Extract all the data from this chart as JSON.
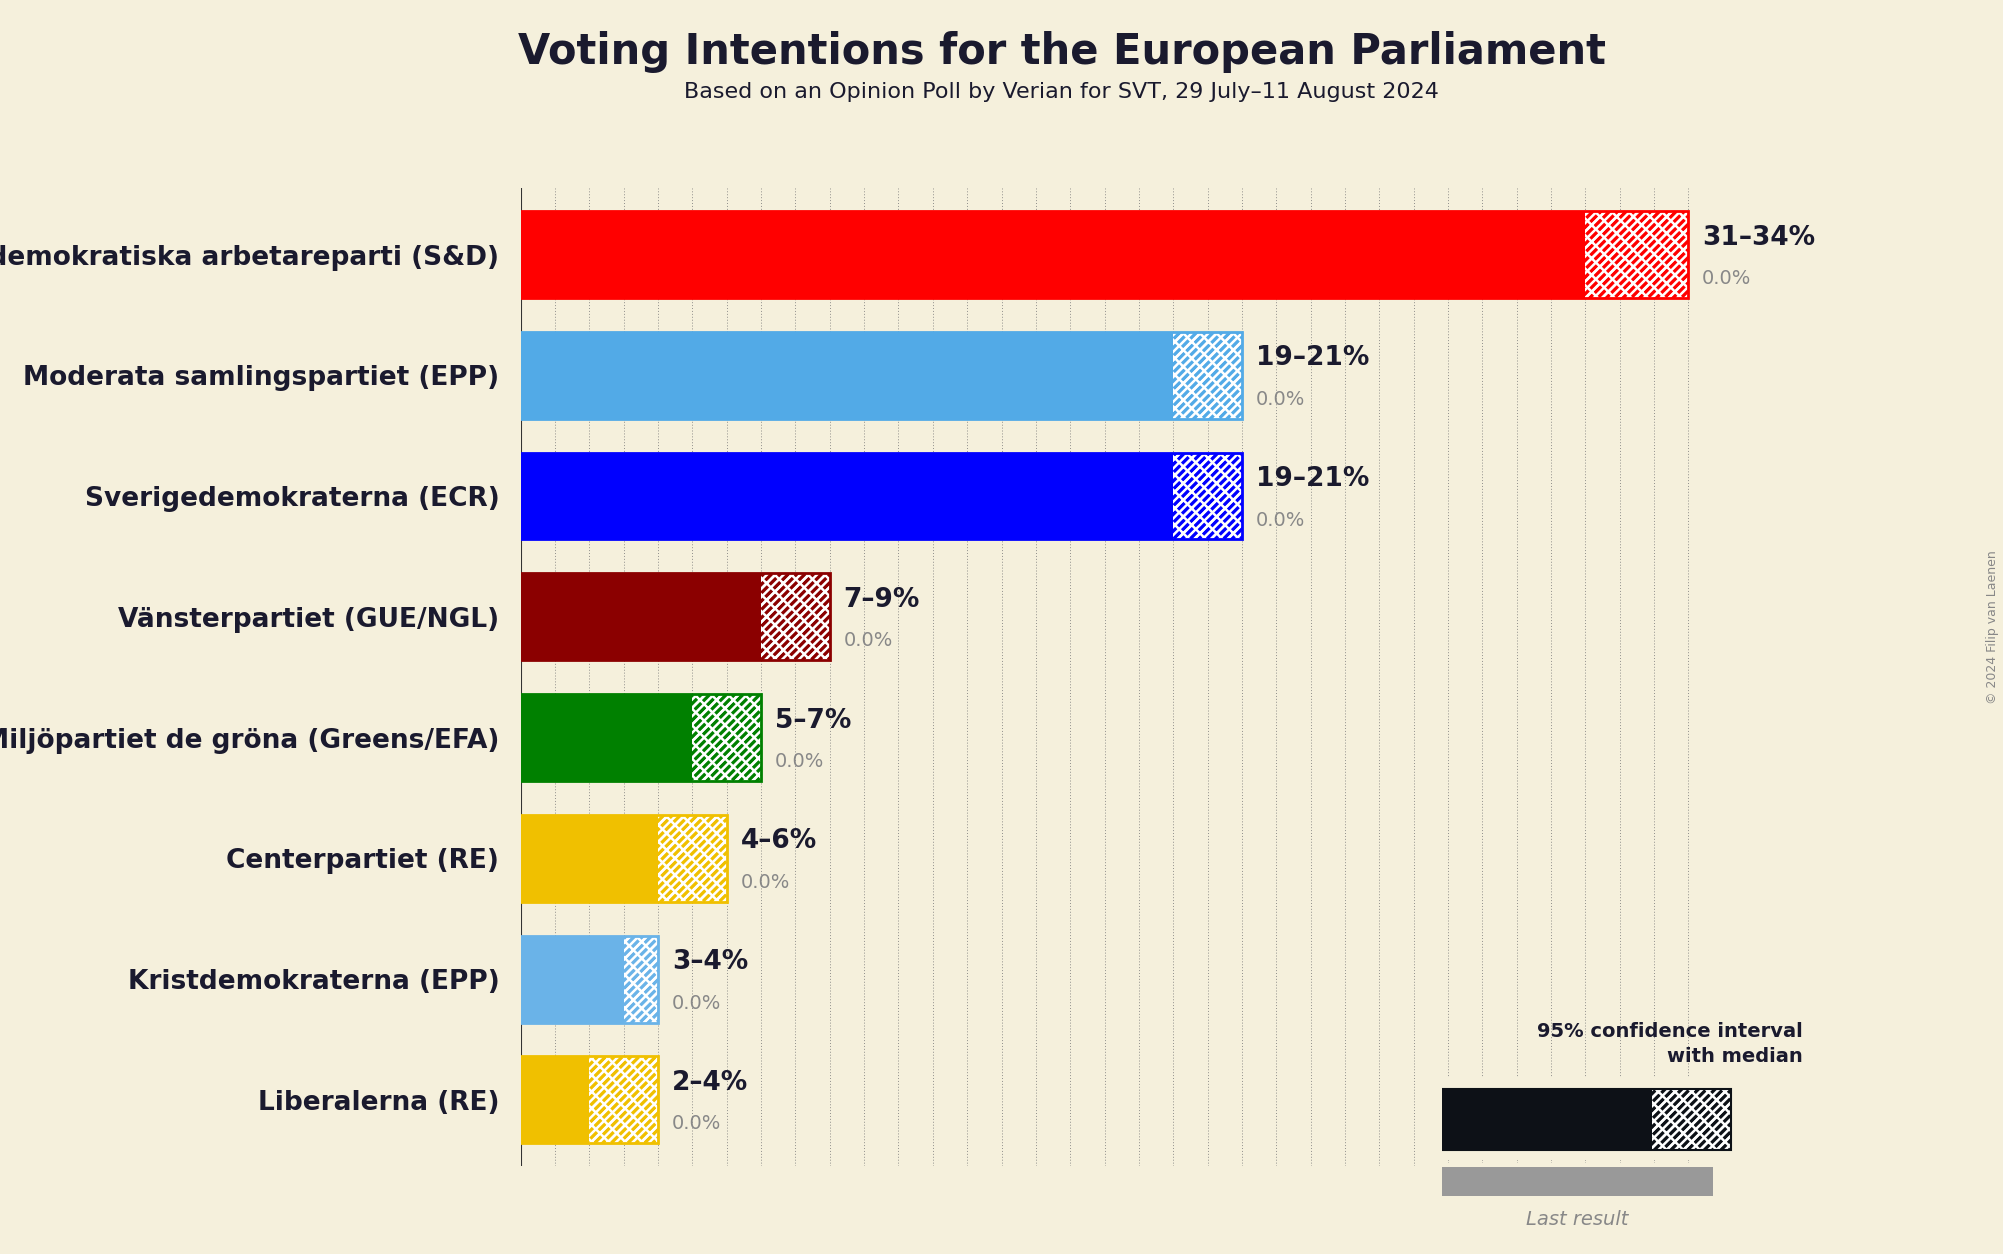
{
  "title": "Voting Intentions for the European Parliament",
  "subtitle": "Based on an Opinion Poll by Verian for SVT, 29 July–11 August 2024",
  "copyright": "© 2024 Filip van Laenen",
  "background_color": "#f5f0dc",
  "parties": [
    {
      "name": "Sveriges socialdemokratiska arbetareparti (S&D)",
      "low": 31,
      "high": 34,
      "median": 31,
      "last": 0.0,
      "color": "#ff0000",
      "label": "31–34%"
    },
    {
      "name": "Moderata samlingspartiet (EPP)",
      "low": 19,
      "high": 21,
      "median": 19,
      "last": 0.0,
      "color": "#52aae7",
      "label": "19–21%"
    },
    {
      "name": "Sverigedemokraterna (ECR)",
      "low": 19,
      "high": 21,
      "median": 19,
      "last": 0.0,
      "color": "#0000ff",
      "label": "19–21%"
    },
    {
      "name": "Vänsterpartiet (GUE/NGL)",
      "low": 7,
      "high": 9,
      "median": 7,
      "last": 0.0,
      "color": "#8b0000",
      "label": "7–9%"
    },
    {
      "name": "Miljöpartiet de gröna (Greens/EFA)",
      "low": 5,
      "high": 7,
      "median": 5,
      "last": 0.0,
      "color": "#008000",
      "label": "5–7%"
    },
    {
      "name": "Centerpartiet (RE)",
      "low": 4,
      "high": 6,
      "median": 4,
      "last": 0.0,
      "color": "#f0c000",
      "label": "4–6%"
    },
    {
      "name": "Kristdemokraterna (EPP)",
      "low": 3,
      "high": 4,
      "median": 3,
      "last": 0.0,
      "color": "#6ab3e8",
      "label": "3–4%"
    },
    {
      "name": "Liberalerna (RE)",
      "low": 2,
      "high": 4,
      "median": 2,
      "last": 0.0,
      "color": "#f0c000",
      "label": "2–4%"
    }
  ],
  "xlim": [
    0,
    35
  ],
  "label_fontsize": 19,
  "title_fontsize": 30,
  "subtitle_fontsize": 16,
  "bar_height": 0.72,
  "text_color": "#1a1a2e",
  "gray_color": "#888888",
  "legend_dark": "#0d1117",
  "legend_gray": "#999999",
  "legend_text": "95% confidence interval\nwith median",
  "legend_last": "Last result"
}
